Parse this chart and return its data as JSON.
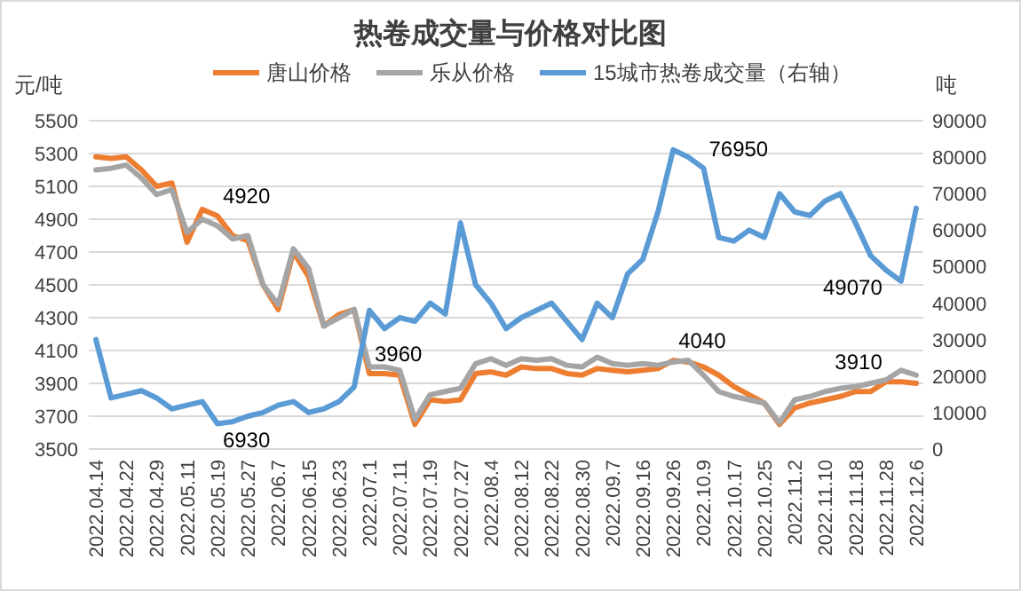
{
  "chart_data": {
    "type": "line",
    "title": "热卷成交量与价格对比图",
    "ylabel": "元/吨",
    "y2label": "吨",
    "categories": [
      "2022.04.14",
      null,
      "2022.04.22",
      null,
      "2022.04.29",
      null,
      "2022.05.11",
      null,
      "2022.05.19",
      null,
      "2022.05.27",
      null,
      "2022.06.7",
      null,
      "2022.06.15",
      null,
      "2022.06.23",
      null,
      "2022.07.1",
      null,
      "2022.07.11",
      null,
      "2022.07.19",
      null,
      "2022.07.27",
      null,
      "2022.08.4",
      null,
      "2022.08.12",
      null,
      "2022.08.22",
      null,
      "2022.08.30",
      null,
      "2022.09.7",
      null,
      "2022.09.16",
      null,
      "2022.09.26",
      null,
      "2022.10.9",
      null,
      "2022.10.17",
      null,
      "2022.10.25",
      null,
      "2022.11.2",
      null,
      "2022.11.10",
      null,
      "2022.11.18",
      null,
      "2022.11.28",
      null,
      "2022.12.6"
    ],
    "series": [
      {
        "name": "唐山价格",
        "color": "#ed7d31",
        "values": [
          5280,
          5270,
          5280,
          5200,
          5100,
          5120,
          4760,
          4960,
          4920,
          4800,
          4770,
          4500,
          4350,
          4700,
          4550,
          4250,
          4320,
          4350,
          3960,
          3960,
          3950,
          3650,
          3800,
          3790,
          3800,
          3960,
          3970,
          3950,
          4000,
          3990,
          3990,
          3960,
          3950,
          3990,
          3980,
          3970,
          3980,
          3990,
          4040,
          4030,
          4000,
          3950,
          3880,
          3830,
          3780,
          3650,
          3750,
          3780,
          3800,
          3820,
          3850,
          3850,
          3910,
          3910,
          3900
        ],
        "value_labels": [
          null,
          null,
          null,
          null,
          null,
          null,
          null,
          null,
          "4920",
          null,
          null,
          null,
          null,
          null,
          null,
          null,
          null,
          null,
          "3960",
          null,
          null,
          null,
          null,
          null,
          null,
          null,
          null,
          null,
          null,
          null,
          null,
          null,
          null,
          null,
          null,
          null,
          null,
          null,
          "4040",
          null,
          null,
          null,
          null,
          null,
          null,
          null,
          null,
          null,
          null,
          null,
          null,
          null,
          "3910",
          null,
          null
        ]
      },
      {
        "name": "乐从价格",
        "color": "#a5a5a5",
        "values": [
          5200,
          5210,
          5230,
          5150,
          5050,
          5080,
          4820,
          4900,
          4860,
          4780,
          4800,
          4500,
          4380,
          4720,
          4600,
          4250,
          4300,
          4350,
          4000,
          4000,
          3980,
          3680,
          3830,
          3850,
          3870,
          4020,
          4050,
          4010,
          4050,
          4040,
          4050,
          4010,
          4000,
          4060,
          4020,
          4010,
          4020,
          4010,
          4030,
          4040,
          3950,
          3850,
          3820,
          3800,
          3780,
          3660,
          3800,
          3820,
          3850,
          3870,
          3880,
          3900,
          3920,
          3980,
          3950
        ]
      },
      {
        "name": "15城市热卷成交量（右轴）",
        "color": "#5b9bd5",
        "axis": "y2",
        "values": [
          30000,
          14000,
          15000,
          16000,
          14000,
          11000,
          12000,
          13000,
          6930,
          7500,
          9000,
          10000,
          12000,
          13000,
          10000,
          11000,
          13000,
          17000,
          38000,
          33000,
          36000,
          35000,
          40000,
          37000,
          62000,
          45000,
          40000,
          33000,
          36000,
          38000,
          40000,
          35000,
          30000,
          40000,
          36000,
          48000,
          52000,
          65000,
          82000,
          80000,
          76950,
          58000,
          57000,
          60000,
          58000,
          70000,
          65000,
          64000,
          68000,
          70000,
          62000,
          53000,
          49070,
          46000,
          66000
        ],
        "value_labels": [
          null,
          null,
          null,
          null,
          null,
          null,
          null,
          null,
          "6930",
          null,
          null,
          null,
          null,
          null,
          null,
          null,
          null,
          null,
          null,
          null,
          null,
          null,
          null,
          null,
          null,
          null,
          null,
          null,
          null,
          null,
          null,
          null,
          null,
          null,
          null,
          null,
          null,
          null,
          null,
          null,
          "76950",
          null,
          null,
          null,
          null,
          null,
          null,
          null,
          null,
          null,
          null,
          null,
          "49070",
          null,
          null
        ]
      }
    ],
    "ylim": [
      3500,
      5500
    ],
    "yticks": [
      3500,
      3700,
      3900,
      4100,
      4300,
      4500,
      4700,
      4900,
      5100,
      5300,
      5500
    ],
    "y2lim": [
      0,
      90000
    ],
    "y2ticks": [
      0,
      10000,
      20000,
      30000,
      40000,
      50000,
      60000,
      70000,
      80000,
      90000
    ],
    "grid": "y",
    "legend": "top",
    "marker": "none",
    "line_style": "solid"
  }
}
